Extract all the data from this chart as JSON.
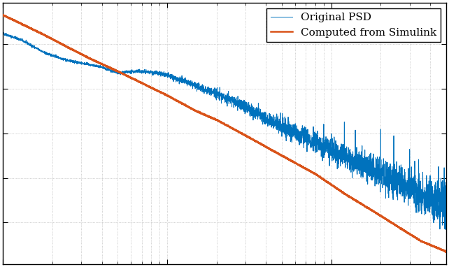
{
  "line1_label": "Original PSD",
  "line2_label": "Computed from Simulink",
  "line1_color": "#0072BD",
  "line2_color": "#D95319",
  "background_color": "#FFFFFF",
  "figsize": [
    6.42,
    3.82
  ],
  "dpi": 100,
  "xlim_log": [
    0.0,
    2.699
  ],
  "ylim_log": [
    -13.5,
    -3.5
  ],
  "f_key1": [
    1.0,
    1.3,
    1.8,
    2.5,
    3.2,
    4.0,
    5.0,
    6.5,
    8.0,
    10,
    13,
    18,
    25,
    35,
    50,
    80,
    120,
    200,
    350,
    500
  ],
  "p_key1": [
    3e-05,
    1.5e-05,
    4e-06,
    1.8e-06,
    1.3e-06,
    9e-07,
    5e-07,
    6e-07,
    5.5e-07,
    4e-07,
    2e-07,
    8e-08,
    3e-08,
    8e-09,
    2e-09,
    4e-10,
    1e-10,
    1.5e-11,
    2e-12,
    6e-13
  ],
  "f_key2": [
    1.0,
    1.3,
    1.8,
    2.5,
    3.5,
    5.0,
    7.0,
    10,
    15,
    20,
    30,
    50,
    80,
    120,
    200,
    350,
    500
  ],
  "p_key2": [
    0.0002,
    8e-05,
    2.5e-05,
    7e-06,
    2e-06,
    6e-07,
    1.8e-07,
    5e-08,
    1e-08,
    4e-09,
    8e-10,
    1e-10,
    1.5e-11,
    2e-12,
    2e-13,
    1.5e-14,
    5e-15
  ],
  "noise_seed": 42
}
